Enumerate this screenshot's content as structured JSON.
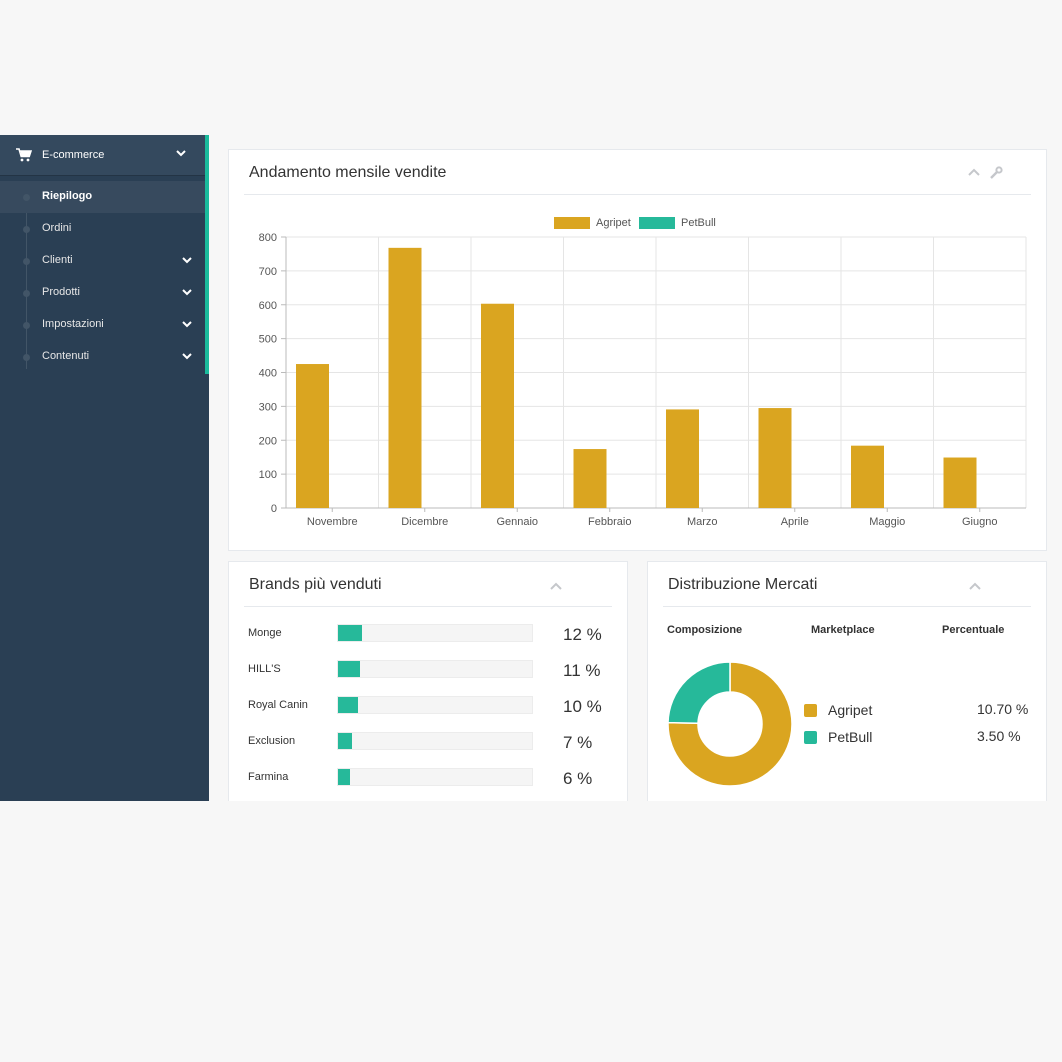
{
  "sidebar": {
    "section_title": "E-commerce",
    "section_icon": "shopping-cart-icon",
    "items": [
      {
        "label": "Riepilogo",
        "active": true,
        "has_children": false
      },
      {
        "label": "Ordini",
        "active": false,
        "has_children": false
      },
      {
        "label": "Clienti",
        "active": false,
        "has_children": true
      },
      {
        "label": "Prodotti",
        "active": false,
        "has_children": true
      },
      {
        "label": "Impostazioni",
        "active": false,
        "has_children": true
      },
      {
        "label": "Contenuti",
        "active": false,
        "has_children": true
      }
    ]
  },
  "colors": {
    "sidebar_bg": "#2a3f54",
    "accent": "#1abb9c",
    "agripet": "#daa520",
    "petbull": "#26b99a"
  },
  "sales_panel": {
    "title": "Andamento mensile vendite"
  },
  "chart_data": {
    "type": "bar",
    "categories": [
      "Novembre",
      "Dicembre",
      "Gennaio",
      "Febbraio",
      "Marzo",
      "Aprile",
      "Maggio",
      "Giugno"
    ],
    "series": [
      {
        "name": "Agripet",
        "color": "#daa520",
        "values": [
          425,
          768,
          603,
          174,
          291,
          295,
          184,
          149
        ]
      },
      {
        "name": "PetBull",
        "color": "#26b99a",
        "values": [
          0,
          0,
          0,
          0,
          0,
          0,
          0,
          0
        ]
      }
    ],
    "yticks": [
      "0",
      "100",
      "200",
      "300",
      "400",
      "500",
      "600",
      "700",
      "800"
    ],
    "ylim": [
      0,
      800
    ],
    "grid": true,
    "legend": "top-center"
  },
  "brands_panel": {
    "title": "Brands più venduti",
    "brands": [
      {
        "name": "Monge",
        "value": 12,
        "pct_label": "12 %"
      },
      {
        "name": "HILL'S",
        "value": 11,
        "pct_label": "11 %"
      },
      {
        "name": "Royal Canin",
        "value": 10,
        "pct_label": "10 %"
      },
      {
        "name": "Exclusion",
        "value": 7,
        "pct_label": "7 %"
      },
      {
        "name": "Farmina",
        "value": 6,
        "pct_label": "6 %"
      }
    ]
  },
  "market_panel": {
    "title": "Distribuzione Mercati",
    "headers": [
      "Composizione",
      "Marketplace",
      "Percentuale"
    ],
    "markets": [
      {
        "name": "Agripet",
        "value": 10.7,
        "pct_label": "10.70 %",
        "color": "#daa520"
      },
      {
        "name": "PetBull",
        "value": 3.5,
        "pct_label": "3.50 %",
        "color": "#26b99a"
      }
    ]
  }
}
